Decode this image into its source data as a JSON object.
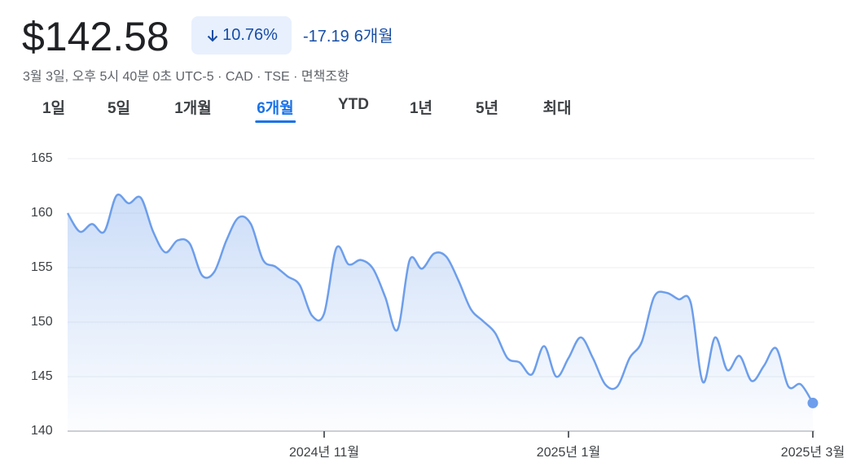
{
  "header": {
    "price": "$142.58",
    "change_percent": "10.76%",
    "change": "-17.19",
    "period": "6개월",
    "info": "3월 3일, 오후 5시 40분 0초 UTC-5 · CAD · TSE · 면책조항"
  },
  "tabs": [
    "1일",
    "5일",
    "1개월",
    "6개월",
    "YTD",
    "1년",
    "5년",
    "최대"
  ],
  "active_tab": 3,
  "chart_data": {
    "type": "line",
    "color": "#6d9eeb",
    "categories": [
      null,
      null,
      null,
      null,
      null,
      null,
      null,
      null,
      null,
      null,
      null,
      null,
      null,
      null,
      null,
      null,
      null,
      null,
      null,
      null,
      null,
      "2024년 11월",
      null,
      null,
      null,
      null,
      null,
      null,
      null,
      null,
      null,
      null,
      null,
      null,
      null,
      null,
      null,
      null,
      null,
      null,
      null,
      "2025년 1월",
      null,
      null,
      null,
      null,
      null,
      null,
      null,
      null,
      null,
      null,
      null,
      null,
      null,
      null,
      null,
      null,
      null,
      null,
      null,
      "2025년 3월"
    ],
    "values": [
      160.0,
      158.3,
      159.0,
      158.3,
      161.6,
      160.9,
      161.4,
      158.3,
      156.4,
      157.5,
      157.2,
      154.3,
      154.6,
      157.5,
      159.6,
      159.0,
      155.7,
      155.1,
      154.2,
      153.4,
      150.6,
      150.8,
      156.8,
      155.3,
      155.7,
      154.9,
      152.3,
      149.3,
      155.7,
      154.9,
      156.3,
      156.0,
      153.8,
      151.2,
      150.1,
      149.0,
      146.7,
      146.3,
      145.2,
      147.8,
      145.0,
      146.7,
      148.6,
      146.7,
      144.3,
      144.1,
      146.7,
      148.2,
      152.3,
      152.7,
      152.1,
      151.8,
      144.5,
      148.6,
      145.6,
      146.9,
      144.6,
      146.0,
      147.6,
      144.1,
      144.3,
      142.58
    ],
    "ylim": [
      140,
      165
    ],
    "yticks": [
      140,
      145,
      150,
      155,
      160,
      165
    ],
    "grid": true
  }
}
